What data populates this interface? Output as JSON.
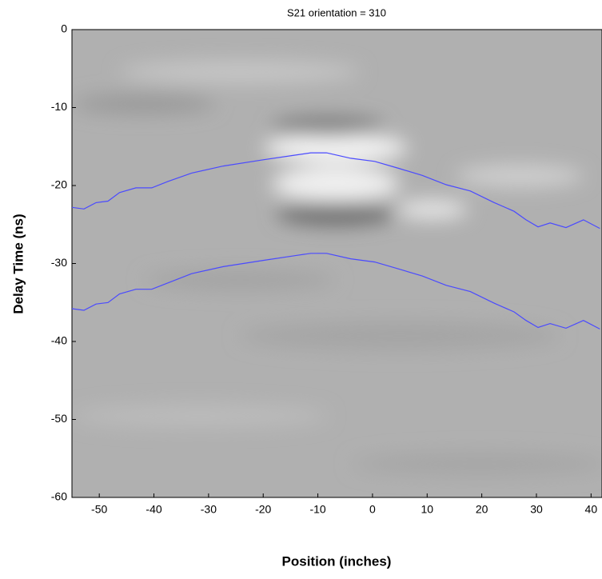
{
  "chart_data": {
    "type": "line",
    "title": "S21  orientation = 310",
    "x_label": "Position (inches)",
    "y_label": "Delay Time (ns)",
    "xlim": [
      -55,
      42
    ],
    "ylim": [
      -60,
      0
    ],
    "xticks": [
      -50,
      -40,
      -30,
      -20,
      -10,
      0,
      10,
      20,
      30,
      40
    ],
    "yticks": [
      0,
      -10,
      -20,
      -30,
      -40,
      -50,
      -60
    ],
    "x": [
      -55,
      -52.8,
      -50.6,
      -48.4,
      -46.3,
      -43.3,
      -40.4,
      -37.5,
      -33.1,
      -27.3,
      -20.0,
      -14.2,
      -11.3,
      -8.4,
      -4.0,
      0.4,
      4.8,
      9.1,
      13.5,
      17.9,
      22.3,
      25.9,
      28.1,
      30.3,
      32.5,
      35.4,
      38.6,
      41.6
    ],
    "series": [
      {
        "color": "#4a4aff",
        "values": [
          -22.8,
          -23.0,
          -22.2,
          -22.0,
          -20.9,
          -20.3,
          -20.3,
          -19.5,
          -18.4,
          -17.5,
          -16.7,
          -16.1,
          -15.8,
          -15.8,
          -16.5,
          -16.9,
          -17.8,
          -18.7,
          -19.9,
          -20.7,
          -22.2,
          -23.3,
          -24.4,
          -25.3,
          -24.8,
          -25.4,
          -24.4,
          -25.5
        ]
      },
      {
        "color": "#4a4aff",
        "values": [
          -35.8,
          -36.0,
          -35.2,
          -35.0,
          -33.9,
          -33.3,
          -33.3,
          -32.5,
          -31.3,
          -30.4,
          -29.6,
          -29.0,
          -28.7,
          -28.7,
          -29.4,
          -29.8,
          -30.7,
          -31.6,
          -32.8,
          -33.6,
          -35.1,
          -36.2,
          -37.3,
          -38.2,
          -37.7,
          -38.3,
          -37.3,
          -38.4
        ]
      }
    ]
  }
}
